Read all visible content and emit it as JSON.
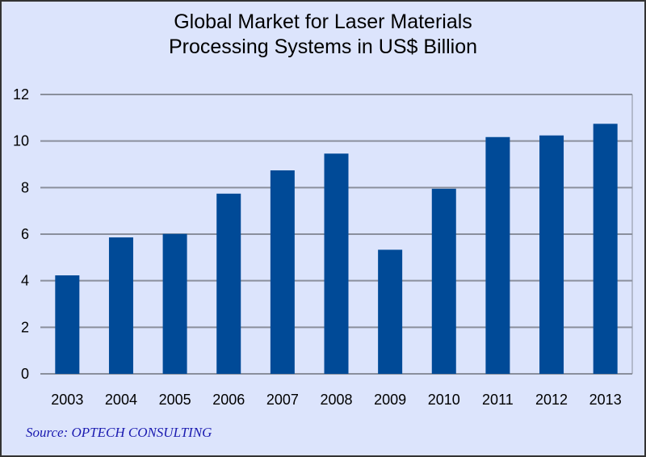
{
  "chart_data": {
    "type": "bar",
    "title_line1": "Global Market for Laser Materials",
    "title_line2": "Processing Systems in US$ Billion",
    "xlabel": "",
    "ylabel": "",
    "categories": [
      "2003",
      "2004",
      "2005",
      "2006",
      "2007",
      "2008",
      "2009",
      "2010",
      "2011",
      "2012",
      "2013"
    ],
    "values": [
      4.23,
      5.86,
      6.01,
      7.74,
      8.74,
      9.46,
      5.33,
      7.95,
      10.17,
      10.24,
      10.74
    ],
    "ylim": [
      0,
      12
    ],
    "yticks": [
      0,
      2,
      4,
      6,
      8,
      10,
      12
    ],
    "grid": true,
    "legend": "none",
    "bar_color": "#004a97",
    "background_color": "#dce4fc",
    "source": "Source: OPTECH CONSULTING"
  }
}
